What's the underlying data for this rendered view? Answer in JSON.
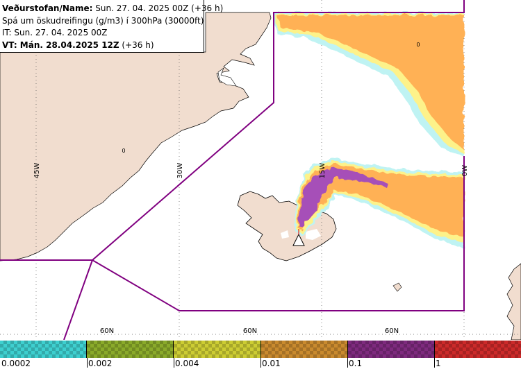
{
  "header": {
    "line1_label": "Veðurstofan/Name:",
    "line1_value": " Sun. 27. 04. 2025 00Z (+36 h)",
    "line2": "Spá um öskudreifingu (g/m3) í 300hPa (30000ft)",
    "line3": "IT: Sun. 27. 04. 2025 00Z",
    "line4_label": "VT: Mán. 28.04.2025 12Z",
    "line4_value": " (+36 h)"
  },
  "map": {
    "meridian_labels": [
      "45W",
      "30W",
      "15W",
      "0W"
    ],
    "parallel_labels": [
      "60N",
      "60N",
      "60N"
    ],
    "contour_labels": [
      "0",
      "0"
    ],
    "colors": {
      "land": "#f1ddcf",
      "sea": "#ffffff",
      "boundary": "#800080",
      "ash_low": "#ffb155",
      "ash_fringe": "#fdf28a",
      "ash_trace": "#bff3f3",
      "ash_high": "#a650b8"
    }
  },
  "legend": {
    "labels": [
      "0.0002",
      "0.002",
      "0.004",
      "0.01",
      "0.1",
      "1"
    ],
    "colors": [
      "#3ecfcf",
      "#8aaa2a",
      "#cccc33",
      "#c98a2e",
      "#7e2a7e",
      "#cc2a2a"
    ]
  }
}
